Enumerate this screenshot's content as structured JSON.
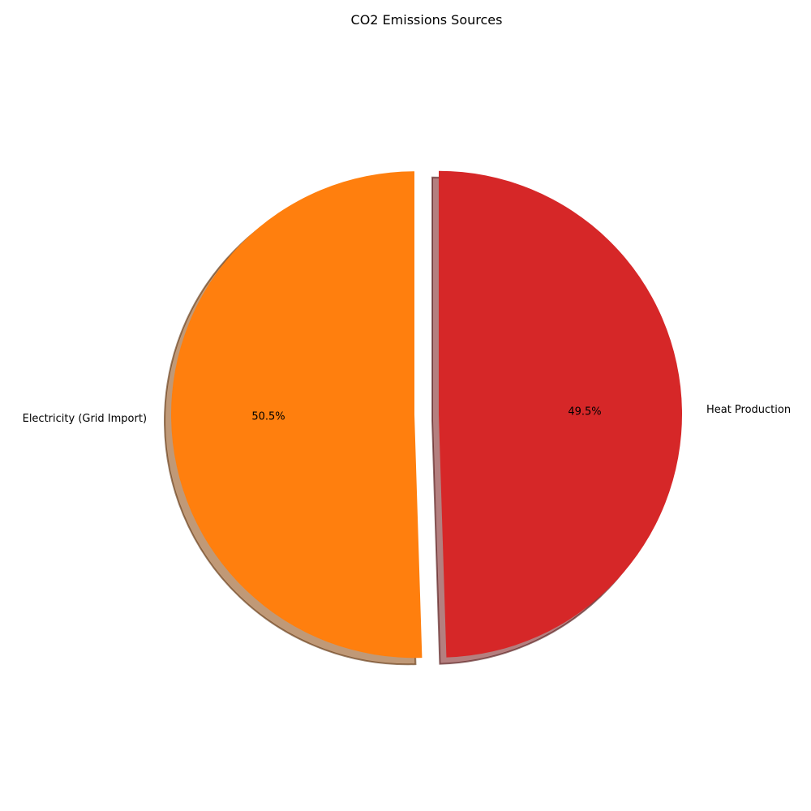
{
  "chart_data": {
    "type": "pie",
    "title": "CO2 Emissions Sources",
    "labels": [
      "Electricity (Grid Import)",
      "Heat Production"
    ],
    "values": [
      50.5,
      49.5
    ],
    "percent_labels": [
      "50.5%",
      "49.5%"
    ],
    "colors": [
      "#ff7f0e",
      "#d62728"
    ],
    "exploded": [
      true,
      true
    ],
    "shadow": true,
    "start_angle_deg": 90,
    "direction": "counterclockwise",
    "legend": "none"
  }
}
